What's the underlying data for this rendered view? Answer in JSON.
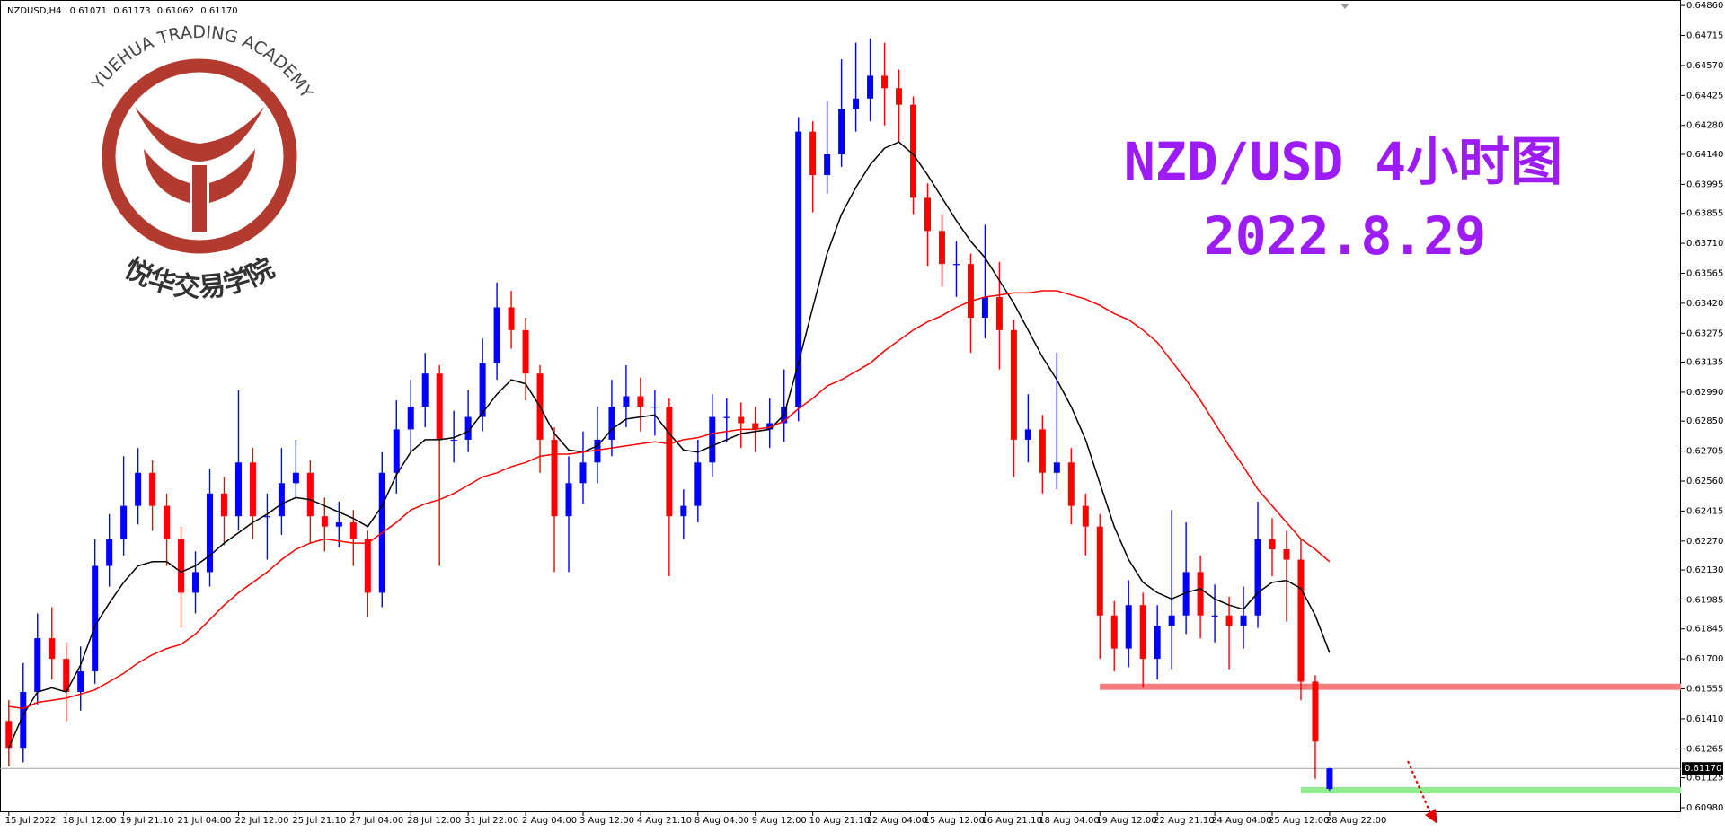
{
  "chart_data": {
    "type": "candlestick",
    "symbol": "NZDUSD,H4",
    "header_values": [
      "0.61071",
      "0.61173",
      "0.61062",
      "0.61170"
    ],
    "title": "NZD/USD 4小时图",
    "subtitle": "2022.8.29",
    "logo": {
      "top": "YUEHUA TRADING ACADEMY",
      "bottom": "悦华交易学院"
    },
    "up_color": "#0000ff",
    "down_color": "#ff0000",
    "x": [
      "15 Jul 2022",
      null,
      null,
      null,
      "18 Jul 12:00",
      null,
      null,
      null,
      "19 Jul 21:10",
      null,
      null,
      null,
      "21 Jul 04:00",
      null,
      null,
      null,
      "22 Jul 12:00",
      null,
      null,
      null,
      "25 Jul 21:10",
      null,
      null,
      null,
      "27 Jul 04:00",
      null,
      null,
      null,
      "28 Jul 12:00",
      null,
      null,
      null,
      "31 Jul 22:00",
      null,
      null,
      null,
      "2 Aug 04:00",
      null,
      null,
      null,
      "3 Aug 12:00",
      null,
      null,
      null,
      "4 Aug 21:10",
      null,
      null,
      null,
      "8 Aug 04:00",
      null,
      null,
      null,
      "9 Aug 12:00",
      null,
      null,
      null,
      "10 Aug 21:10",
      null,
      null,
      null,
      "12 Aug 04:00",
      null,
      null,
      null,
      "15 Aug 12:00",
      null,
      null,
      null,
      "16 Aug 21:10",
      null,
      null,
      null,
      "18 Aug 04:00",
      null,
      null,
      null,
      "19 Aug 12:00",
      null,
      null,
      null,
      "22 Aug 21:10",
      null,
      null,
      null,
      "24 Aug 04:00",
      null,
      null,
      null,
      "25 Aug 12:00",
      null,
      null,
      null,
      "28 Aug 22:00"
    ],
    "ohlc": [
      [
        0.614,
        0.615,
        0.6118,
        0.6127
      ],
      [
        0.6127,
        0.6168,
        0.612,
        0.6154
      ],
      [
        0.6154,
        0.6192,
        0.6148,
        0.618
      ],
      [
        0.618,
        0.6195,
        0.616,
        0.617
      ],
      [
        0.617,
        0.6178,
        0.614,
        0.6154
      ],
      [
        0.6154,
        0.6176,
        0.6145,
        0.6164
      ],
      [
        0.6164,
        0.6228,
        0.6158,
        0.6215
      ],
      [
        0.6215,
        0.624,
        0.6205,
        0.6228
      ],
      [
        0.6228,
        0.6268,
        0.622,
        0.6244
      ],
      [
        0.6244,
        0.6272,
        0.6235,
        0.626
      ],
      [
        0.626,
        0.6266,
        0.6232,
        0.6244
      ],
      [
        0.6244,
        0.625,
        0.6215,
        0.6228
      ],
      [
        0.6228,
        0.6234,
        0.6185,
        0.6202
      ],
      [
        0.6202,
        0.6222,
        0.6192,
        0.6212
      ],
      [
        0.6212,
        0.6262,
        0.6205,
        0.625
      ],
      [
        0.625,
        0.6258,
        0.6225,
        0.6239
      ],
      [
        0.6239,
        0.63,
        0.6232,
        0.6265
      ],
      [
        0.6265,
        0.6272,
        0.6228,
        0.6239
      ],
      [
        0.6239,
        0.625,
        0.6218,
        0.6239
      ],
      [
        0.6239,
        0.6272,
        0.623,
        0.6255
      ],
      [
        0.6255,
        0.6276,
        0.6248,
        0.626
      ],
      [
        0.626,
        0.6266,
        0.6226,
        0.6239
      ],
      [
        0.6239,
        0.6248,
        0.6222,
        0.6234
      ],
      [
        0.6234,
        0.6246,
        0.6224,
        0.6236
      ],
      [
        0.6236,
        0.6242,
        0.6215,
        0.6228
      ],
      [
        0.6228,
        0.6232,
        0.619,
        0.6202
      ],
      [
        0.6202,
        0.627,
        0.6195,
        0.626
      ],
      [
        0.626,
        0.6295,
        0.625,
        0.6281
      ],
      [
        0.6281,
        0.6305,
        0.627,
        0.6292
      ],
      [
        0.6292,
        0.6318,
        0.6282,
        0.6308
      ],
      [
        0.6308,
        0.6312,
        0.6215,
        0.6276
      ],
      [
        0.6276,
        0.629,
        0.6265,
        0.6276
      ],
      [
        0.6276,
        0.63,
        0.627,
        0.6287
      ],
      [
        0.6287,
        0.6325,
        0.628,
        0.6313
      ],
      [
        0.6313,
        0.6352,
        0.6305,
        0.634
      ],
      [
        0.634,
        0.6348,
        0.632,
        0.6329
      ],
      [
        0.6329,
        0.6335,
        0.6295,
        0.6308
      ],
      [
        0.6308,
        0.6312,
        0.626,
        0.6276
      ],
      [
        0.6276,
        0.6282,
        0.6212,
        0.6239
      ],
      [
        0.6239,
        0.6268,
        0.6212,
        0.6255
      ],
      [
        0.6255,
        0.628,
        0.6245,
        0.6265
      ],
      [
        0.6265,
        0.6292,
        0.6255,
        0.6276
      ],
      [
        0.6276,
        0.6305,
        0.6268,
        0.6292
      ],
      [
        0.6292,
        0.6312,
        0.6282,
        0.6297
      ],
      [
        0.6297,
        0.6306,
        0.628,
        0.6292
      ],
      [
        0.6292,
        0.63,
        0.6278,
        0.6292
      ],
      [
        0.6292,
        0.6296,
        0.621,
        0.6239
      ],
      [
        0.6239,
        0.6252,
        0.6228,
        0.6244
      ],
      [
        0.6244,
        0.6276,
        0.6236,
        0.6265
      ],
      [
        0.6265,
        0.6298,
        0.6258,
        0.6287
      ],
      [
        0.6287,
        0.6296,
        0.6275,
        0.6287
      ],
      [
        0.6287,
        0.6294,
        0.6272,
        0.6284
      ],
      [
        0.6284,
        0.6292,
        0.627,
        0.6281
      ],
      [
        0.6281,
        0.6296,
        0.6272,
        0.6284
      ],
      [
        0.6284,
        0.631,
        0.6275,
        0.6292
      ],
      [
        0.6292,
        0.6432,
        0.6285,
        0.6425
      ],
      [
        0.6425,
        0.643,
        0.6386,
        0.6404
      ],
      [
        0.6404,
        0.644,
        0.6395,
        0.6414
      ],
      [
        0.6414,
        0.646,
        0.6408,
        0.6436
      ],
      [
        0.6436,
        0.6468,
        0.6425,
        0.6441
      ],
      [
        0.6441,
        0.647,
        0.643,
        0.6452
      ],
      [
        0.6452,
        0.6468,
        0.6428,
        0.6446
      ],
      [
        0.6446,
        0.6455,
        0.642,
        0.6438
      ],
      [
        0.6438,
        0.6442,
        0.6385,
        0.6393
      ],
      [
        0.6393,
        0.64,
        0.636,
        0.6377
      ],
      [
        0.6377,
        0.6385,
        0.635,
        0.6361
      ],
      [
        0.6361,
        0.6372,
        0.6345,
        0.6361
      ],
      [
        0.6361,
        0.6366,
        0.6318,
        0.6335
      ],
      [
        0.6335,
        0.638,
        0.6325,
        0.6345
      ],
      [
        0.6345,
        0.6362,
        0.631,
        0.6329
      ],
      [
        0.6329,
        0.6334,
        0.6258,
        0.6276
      ],
      [
        0.6276,
        0.6298,
        0.6265,
        0.6281
      ],
      [
        0.6281,
        0.6288,
        0.625,
        0.626
      ],
      [
        0.626,
        0.6318,
        0.6252,
        0.6265
      ],
      [
        0.6265,
        0.6272,
        0.6235,
        0.6244
      ],
      [
        0.6244,
        0.625,
        0.622,
        0.6234
      ],
      [
        0.6234,
        0.624,
        0.617,
        0.6191
      ],
      [
        0.6191,
        0.6198,
        0.6164,
        0.6175
      ],
      [
        0.6175,
        0.6208,
        0.6166,
        0.6196
      ],
      [
        0.6196,
        0.6202,
        0.6156,
        0.617
      ],
      [
        0.617,
        0.6196,
        0.616,
        0.6186
      ],
      [
        0.6186,
        0.6242,
        0.6165,
        0.6191
      ],
      [
        0.6191,
        0.6236,
        0.6182,
        0.6212
      ],
      [
        0.6212,
        0.622,
        0.618,
        0.6191
      ],
      [
        0.6191,
        0.6206,
        0.6178,
        0.6191
      ],
      [
        0.6191,
        0.62,
        0.6165,
        0.6186
      ],
      [
        0.6186,
        0.6205,
        0.6175,
        0.6191
      ],
      [
        0.6191,
        0.6246,
        0.6185,
        0.6228
      ],
      [
        0.6228,
        0.6238,
        0.621,
        0.6223
      ],
      [
        0.6223,
        0.6232,
        0.6188,
        0.6218
      ],
      [
        0.6218,
        0.6228,
        0.615,
        0.6159
      ],
      [
        0.6159,
        0.6162,
        0.6112,
        0.613
      ],
      [
        0.61071,
        0.61173,
        0.61062,
        0.6117
      ]
    ],
    "lines": [
      {
        "color": "#000000",
        "values": [
          0.6127,
          0.6143,
          0.6154,
          0.6156,
          0.6154,
          0.6167,
          0.6186,
          0.6197,
          0.6207,
          0.6215,
          0.6217,
          0.6217,
          0.6212,
          0.6215,
          0.622,
          0.6226,
          0.6231,
          0.6236,
          0.624,
          0.6245,
          0.6248,
          0.6247,
          0.6244,
          0.6241,
          0.6238,
          0.6234,
          0.6244,
          0.6259,
          0.627,
          0.6276,
          0.6276,
          0.6277,
          0.628,
          0.6289,
          0.6298,
          0.6305,
          0.6303,
          0.6292,
          0.6279,
          0.6271,
          0.627,
          0.6273,
          0.6281,
          0.6286,
          0.6287,
          0.6288,
          0.6279,
          0.6271,
          0.627,
          0.6273,
          0.6276,
          0.6279,
          0.628,
          0.6281,
          0.6288,
          0.6313,
          0.634,
          0.6366,
          0.6385,
          0.6398,
          0.6409,
          0.6417,
          0.642,
          0.6414,
          0.6404,
          0.6393,
          0.6382,
          0.6372,
          0.6364,
          0.6353,
          0.6342,
          0.6329,
          0.6316,
          0.6305,
          0.6292,
          0.6276,
          0.6255,
          0.6234,
          0.6218,
          0.6207,
          0.6202,
          0.6199,
          0.6202,
          0.6204,
          0.6199,
          0.6196,
          0.6194,
          0.6202,
          0.6207,
          0.6208,
          0.6204,
          0.6191,
          0.6173
        ]
      },
      {
        "color": "#ff0000",
        "values": [
          0.6147,
          0.6146,
          0.6149,
          0.615,
          0.6151,
          0.6153,
          0.6155,
          0.6159,
          0.6163,
          0.6168,
          0.6172,
          0.6175,
          0.6177,
          0.6182,
          0.6189,
          0.6196,
          0.6202,
          0.6207,
          0.6212,
          0.6218,
          0.6223,
          0.6226,
          0.6228,
          0.6227,
          0.6226,
          0.6226,
          0.6231,
          0.6236,
          0.6242,
          0.6245,
          0.6247,
          0.625,
          0.6254,
          0.6258,
          0.626,
          0.6263,
          0.6265,
          0.6268,
          0.6269,
          0.6269,
          0.627,
          0.6271,
          0.6272,
          0.6273,
          0.6274,
          0.6275,
          0.6274,
          0.6276,
          0.6277,
          0.6279,
          0.628,
          0.6281,
          0.6281,
          0.6282,
          0.6285,
          0.6291,
          0.6296,
          0.6302,
          0.6305,
          0.6309,
          0.6313,
          0.6319,
          0.6324,
          0.6329,
          0.6333,
          0.6336,
          0.634,
          0.6343,
          0.6345,
          0.6346,
          0.6347,
          0.6347,
          0.6348,
          0.6348,
          0.6346,
          0.6344,
          0.6341,
          0.6337,
          0.6334,
          0.6329,
          0.6323,
          0.6314,
          0.6305,
          0.6295,
          0.6284,
          0.6273,
          0.6263,
          0.6252,
          0.6244,
          0.6236,
          0.6228,
          0.6223,
          0.6217
        ]
      }
    ],
    "zones": [
      {
        "color": "#f47c7c",
        "ylim": [
          0.6155,
          0.6158
        ],
        "x_start": 76
      },
      {
        "color": "#90ee90",
        "ylim": [
          0.6105,
          0.6108
        ],
        "x_start": 90
      }
    ],
    "last_price": {
      "value": 0.6117,
      "label": "0.61170"
    },
    "ylim": [
      0.6098,
      0.6486
    ],
    "yticks": [
      {
        "value": 0.6486,
        "label": "0.64860"
      },
      0.64715,
      {
        "value": 0.6457,
        "label": "0.64570"
      },
      0.64425,
      {
        "value": 0.6428,
        "label": "0.64280"
      },
      {
        "value": 0.6414,
        "label": "0.64140"
      },
      0.63995,
      0.63855,
      {
        "value": 0.6371,
        "label": "0.63710"
      },
      0.63565,
      {
        "value": 0.6342,
        "label": "0.63420"
      },
      0.63275,
      0.63135,
      {
        "value": 0.6299,
        "label": "0.62990"
      },
      {
        "value": 0.6285,
        "label": "0.62850"
      },
      0.62705,
      {
        "value": 0.6256,
        "label": "0.62560"
      },
      0.62415,
      {
        "value": 0.6227,
        "label": "0.62270"
      },
      {
        "value": 0.6213,
        "label": "0.62130"
      },
      0.61985,
      0.61845,
      {
        "value": 0.617,
        "label": "0.61700"
      },
      0.61555,
      {
        "value": 0.6141,
        "label": "0.61410"
      },
      0.61265,
      0.61125,
      {
        "value": 0.6098,
        "label": "0.60980"
      }
    ]
  }
}
